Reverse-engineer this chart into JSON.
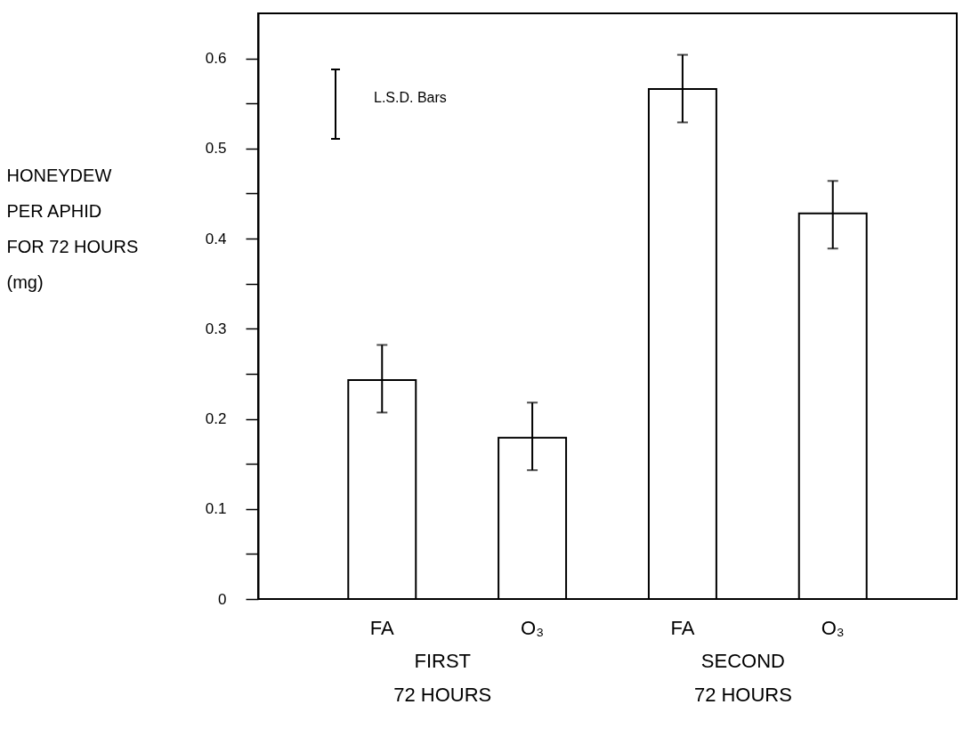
{
  "chart_data": {
    "type": "bar",
    "ylabel": "HONEYDEW\nPER APHID\nFOR 72 HOURS\n(mg)",
    "categories": [
      "FA",
      "O₃",
      "FA",
      "O₃"
    ],
    "values": [
      0.243,
      0.179,
      0.566,
      0.428
    ],
    "errors": [
      [
        0.207,
        0.282
      ],
      [
        0.143,
        0.218
      ],
      [
        0.529,
        0.604
      ],
      [
        0.389,
        0.464
      ]
    ],
    "color": "#ffffff",
    "ylim": [
      0,
      0.65
    ],
    "yticks": [
      0,
      {
        "value": 0.05,
        "label": null
      },
      0.1,
      {
        "value": 0.15,
        "label": null
      },
      0.2,
      {
        "value": 0.25,
        "label": null
      },
      0.3,
      {
        "value": 0.35,
        "label": null
      },
      0.4,
      {
        "value": 0.45,
        "label": null
      },
      0.5,
      {
        "value": 0.55,
        "label": null
      },
      0.6
    ],
    "grid": false,
    "annotations": [
      "L.S.D. Bars",
      "FIRST\n72 HOURS",
      "SECOND\n72 HOURS"
    ]
  }
}
